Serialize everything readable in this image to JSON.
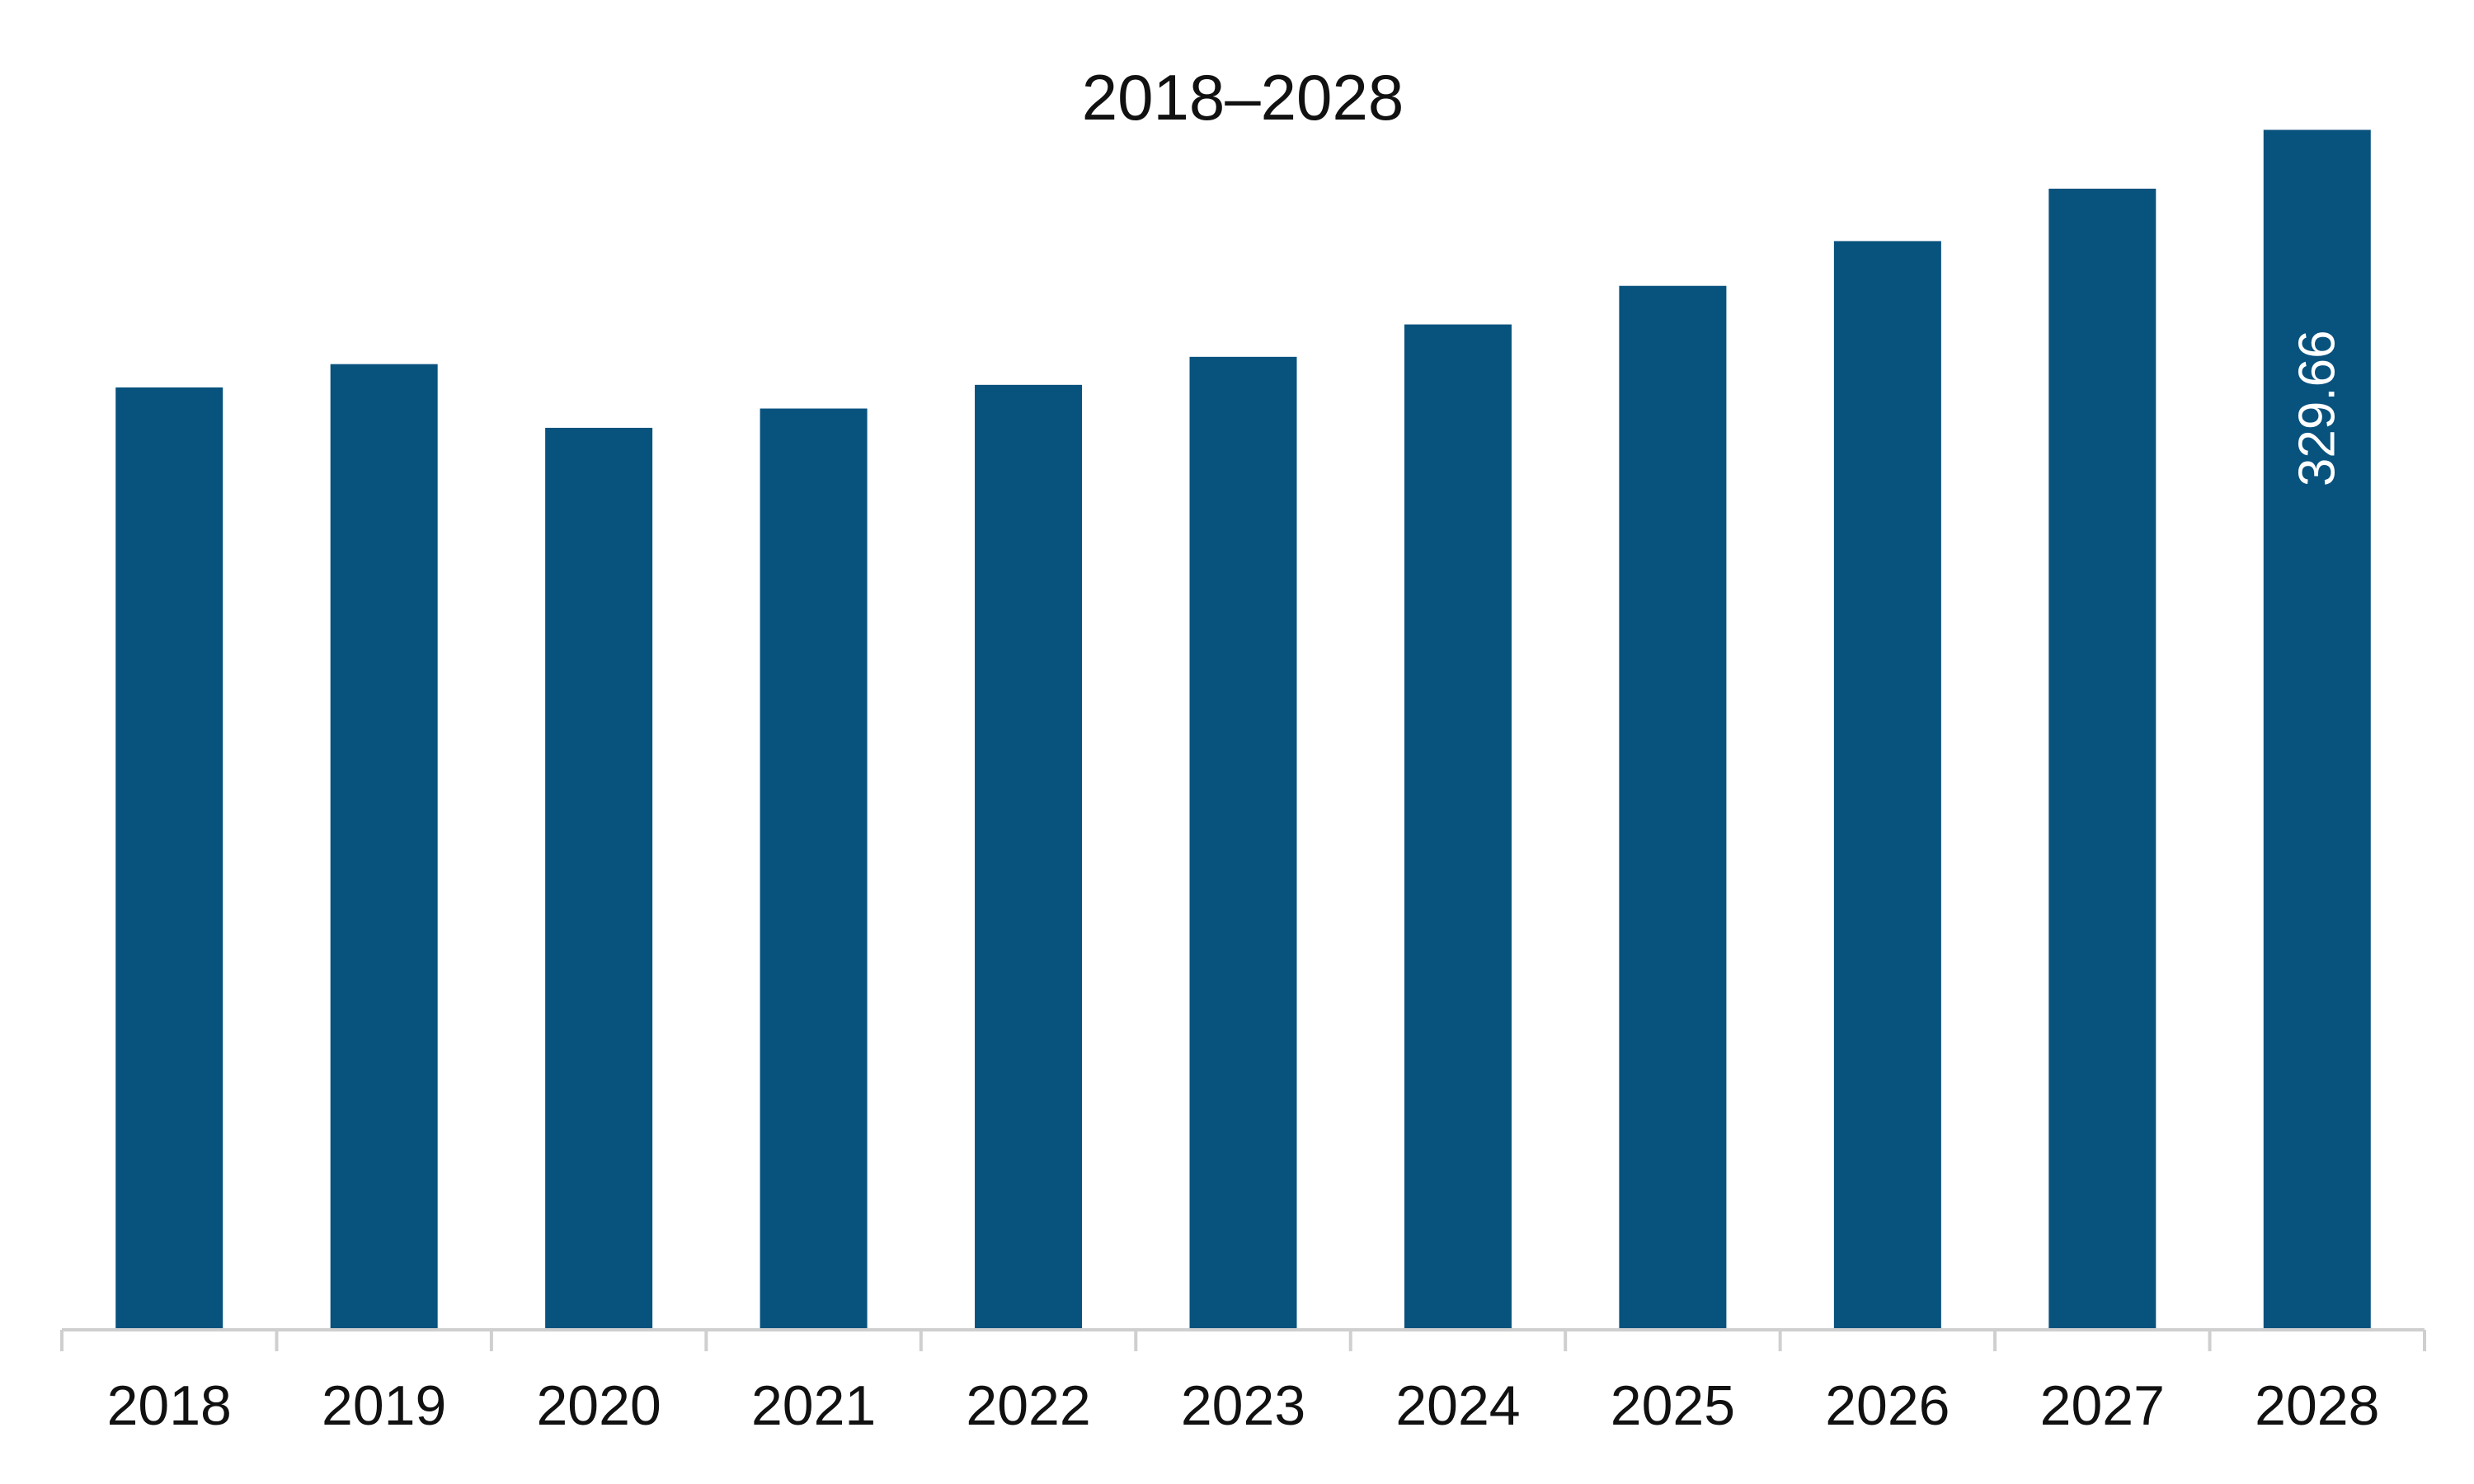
{
  "chart_data": {
    "type": "bar",
    "title": "2018–2028",
    "xlabel": "",
    "ylabel": "",
    "categories": [
      "2018",
      "2019",
      "2020",
      "2021",
      "2022",
      "2023",
      "2024",
      "2025",
      "2026",
      "2027",
      "2028"
    ],
    "values": [
      258.9,
      265.3,
      247.8,
      253.1,
      259.6,
      267.3,
      276.2,
      286.8,
      299.1,
      313.5,
      329.66
    ],
    "data_labels": [
      "",
      "",
      "",
      "",
      "",
      "",
      "",
      "",
      "",
      "",
      "329.66"
    ],
    "ylim": [
      0,
      330
    ],
    "grid": false,
    "legend": "none",
    "colors": {
      "bar": "#08527E",
      "axis": "#CFCFCF",
      "text": "#111111",
      "data_label": "#FFFFFF"
    }
  }
}
